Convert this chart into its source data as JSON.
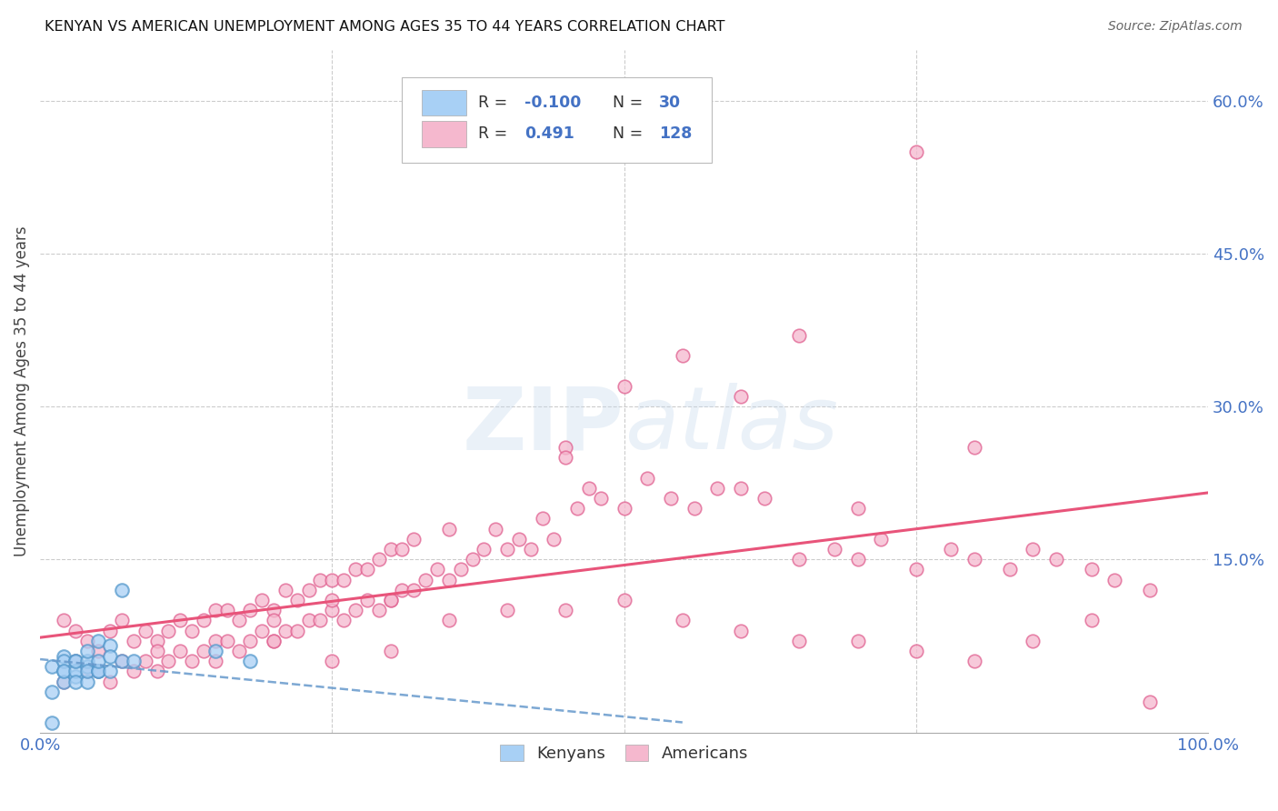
{
  "title": "KENYAN VS AMERICAN UNEMPLOYMENT AMONG AGES 35 TO 44 YEARS CORRELATION CHART",
  "source": "Source: ZipAtlas.com",
  "ylabel": "Unemployment Among Ages 35 to 44 years",
  "xlim": [
    0.0,
    1.0
  ],
  "ylim": [
    -0.02,
    0.65
  ],
  "yticks": [
    0.0,
    0.15,
    0.3,
    0.45,
    0.6
  ],
  "ytick_labels": [
    "",
    "15.0%",
    "30.0%",
    "45.0%",
    "60.0%"
  ],
  "kenyan_color": "#A8D0F5",
  "american_color": "#F5B8CE",
  "kenyan_edge_color": "#5599CC",
  "american_edge_color": "#E06090",
  "kenyan_line_color": "#6699CC",
  "american_line_color": "#E8547A",
  "background_color": "#FFFFFF",
  "legend_R_kenyan": "-0.100",
  "legend_N_kenyan": "30",
  "legend_R_american": "0.491",
  "legend_N_american": "128",
  "kenyan_scatter_x": [
    0.01,
    0.01,
    0.02,
    0.02,
    0.02,
    0.02,
    0.02,
    0.03,
    0.03,
    0.03,
    0.03,
    0.03,
    0.04,
    0.04,
    0.04,
    0.04,
    0.04,
    0.05,
    0.05,
    0.05,
    0.05,
    0.06,
    0.06,
    0.06,
    0.07,
    0.07,
    0.08,
    0.15,
    0.18,
    0.01
  ],
  "kenyan_scatter_y": [
    0.045,
    0.02,
    0.04,
    0.055,
    0.03,
    0.05,
    0.04,
    0.035,
    0.05,
    0.04,
    0.03,
    0.05,
    0.045,
    0.05,
    0.06,
    0.03,
    0.04,
    0.04,
    0.07,
    0.04,
    0.05,
    0.065,
    0.055,
    0.04,
    0.12,
    0.05,
    0.05,
    0.06,
    0.05,
    -0.01
  ],
  "american_scatter_x": [
    0.02,
    0.02,
    0.03,
    0.03,
    0.04,
    0.04,
    0.05,
    0.05,
    0.06,
    0.06,
    0.07,
    0.07,
    0.08,
    0.08,
    0.09,
    0.09,
    0.1,
    0.1,
    0.11,
    0.11,
    0.12,
    0.12,
    0.13,
    0.13,
    0.14,
    0.14,
    0.15,
    0.15,
    0.16,
    0.16,
    0.17,
    0.17,
    0.18,
    0.18,
    0.19,
    0.19,
    0.2,
    0.2,
    0.21,
    0.21,
    0.22,
    0.22,
    0.23,
    0.23,
    0.24,
    0.24,
    0.25,
    0.25,
    0.26,
    0.26,
    0.27,
    0.27,
    0.28,
    0.28,
    0.29,
    0.29,
    0.3,
    0.3,
    0.31,
    0.31,
    0.32,
    0.32,
    0.33,
    0.34,
    0.35,
    0.35,
    0.36,
    0.37,
    0.38,
    0.39,
    0.4,
    0.41,
    0.42,
    0.43,
    0.44,
    0.45,
    0.46,
    0.47,
    0.48,
    0.5,
    0.52,
    0.54,
    0.56,
    0.58,
    0.6,
    0.62,
    0.65,
    0.68,
    0.7,
    0.72,
    0.75,
    0.78,
    0.8,
    0.83,
    0.85,
    0.87,
    0.9,
    0.92,
    0.95,
    0.45,
    0.5,
    0.55,
    0.6,
    0.65,
    0.7,
    0.75,
    0.8,
    0.2,
    0.25,
    0.3,
    0.35,
    0.4,
    0.45,
    0.5,
    0.55,
    0.6,
    0.65,
    0.7,
    0.75,
    0.8,
    0.85,
    0.9,
    0.95,
    0.1,
    0.15,
    0.2,
    0.25,
    0.3
  ],
  "american_scatter_y": [
    0.03,
    0.09,
    0.05,
    0.08,
    0.04,
    0.07,
    0.04,
    0.06,
    0.03,
    0.08,
    0.05,
    0.09,
    0.04,
    0.07,
    0.05,
    0.08,
    0.04,
    0.07,
    0.05,
    0.08,
    0.06,
    0.09,
    0.05,
    0.08,
    0.06,
    0.09,
    0.07,
    0.1,
    0.07,
    0.1,
    0.06,
    0.09,
    0.07,
    0.1,
    0.08,
    0.11,
    0.07,
    0.1,
    0.08,
    0.12,
    0.08,
    0.11,
    0.09,
    0.12,
    0.09,
    0.13,
    0.1,
    0.13,
    0.09,
    0.13,
    0.1,
    0.14,
    0.11,
    0.14,
    0.1,
    0.15,
    0.11,
    0.16,
    0.12,
    0.16,
    0.12,
    0.17,
    0.13,
    0.14,
    0.13,
    0.18,
    0.14,
    0.15,
    0.16,
    0.18,
    0.16,
    0.17,
    0.16,
    0.19,
    0.17,
    0.26,
    0.2,
    0.22,
    0.21,
    0.2,
    0.23,
    0.21,
    0.2,
    0.22,
    0.22,
    0.21,
    0.15,
    0.16,
    0.15,
    0.17,
    0.14,
    0.16,
    0.15,
    0.14,
    0.16,
    0.15,
    0.14,
    0.13,
    0.12,
    0.25,
    0.32,
    0.35,
    0.31,
    0.37,
    0.2,
    0.55,
    0.26,
    0.09,
    0.11,
    0.11,
    0.09,
    0.1,
    0.1,
    0.11,
    0.09,
    0.08,
    0.07,
    0.07,
    0.06,
    0.05,
    0.07,
    0.09,
    0.01,
    0.06,
    0.05,
    0.07,
    0.05,
    0.06
  ]
}
